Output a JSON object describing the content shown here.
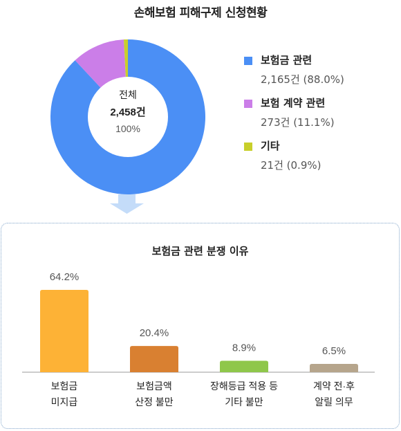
{
  "title": "손해보험 피해구제 신청현황",
  "donut": {
    "center_label": "전체",
    "center_value": "2,458건",
    "center_percent": "100%"
  },
  "legend": [
    {
      "name": "보험금 관련",
      "value": "2,165건 (88.0%)",
      "color": "#4b8ff5"
    },
    {
      "name": "보험 계약 관련",
      "value": "273건 (11.1%)",
      "color": "#cb7ee8"
    },
    {
      "name": "기타",
      "value": "21건 (0.9%)",
      "color": "#c8cf2b"
    }
  ],
  "colors": {
    "arrow": "#c4dcf9",
    "panel_border": "#7fa3c9",
    "baseline": "#999999"
  },
  "panel_title": "보험금 관련 분쟁 이유",
  "chart_data": [
    {
      "type": "pie",
      "categories": [
        "보험금 관련",
        "보험 계약 관련",
        "기타"
      ],
      "values": [
        2165,
        273,
        21
      ],
      "percents": [
        88.0,
        11.1,
        0.9
      ],
      "total": 2458,
      "colors": [
        "#4b8ff5",
        "#cb7ee8",
        "#c8cf2b"
      ],
      "title": "손해보험 피해구제 신청현황",
      "legend": "right"
    },
    {
      "type": "bar",
      "categories": [
        [
          "보험금",
          "미지급"
        ],
        [
          "보험금액",
          "산정 불만"
        ],
        [
          "장해등급 적용 등",
          "기타 불만"
        ],
        [
          "계약 전·후",
          "알릴 의무"
        ]
      ],
      "values": [
        64.2,
        20.4,
        8.9,
        6.5
      ],
      "value_labels": [
        "64.2%",
        "20.4%",
        "8.9%",
        "6.5%"
      ],
      "colors": [
        "#fdb236",
        "#d98031",
        "#8fc74b",
        "#b6a58c"
      ],
      "title": "보험금 관련 분쟁 이유",
      "ylim": [
        0,
        64.2
      ],
      "grid": false
    }
  ]
}
